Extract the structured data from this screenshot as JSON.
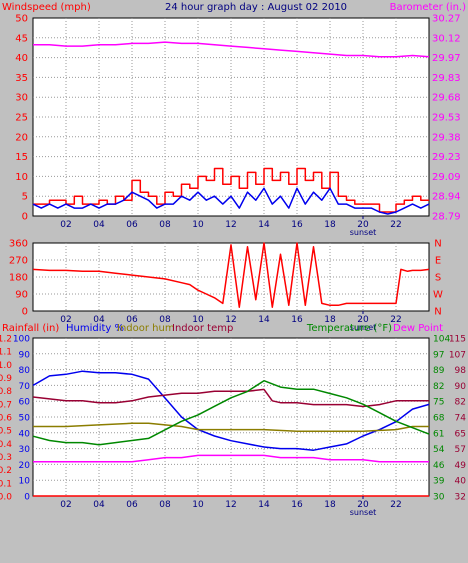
{
  "colors": {
    "background": "#c0c0c0",
    "plot_bg": "#ffffff",
    "grid": "#9a9a9a",
    "red": "#ff0000",
    "blue": "#0000ee",
    "magenta": "#ff00ff",
    "olive": "#8b7d00",
    "maroon": "#990033",
    "green": "#008800",
    "dark_red": "#cc0000",
    "navy": "#000080"
  },
  "chart_data": [
    {
      "type": "line",
      "title": "24 hour graph day : August 02 2010",
      "ylabel": "Windspeed (mph)",
      "y2label": "Barometer (in.)",
      "xlim": [
        0,
        24
      ],
      "ylim": [
        0,
        50
      ],
      "y_ticks": [
        "0",
        "5",
        "10",
        "15",
        "20",
        "25",
        "30",
        "35",
        "40",
        "45",
        "50"
      ],
      "y2lim": [
        28.79,
        30.27
      ],
      "y2_ticks": [
        "28.79",
        "28.94",
        "29.09",
        "29.23",
        "29.38",
        "29.53",
        "29.68",
        "29.83",
        "29.97",
        "30.12",
        "30.27"
      ],
      "x_ticks": [
        "02",
        "04",
        "06",
        "08",
        "10",
        "12",
        "14",
        "16",
        "18",
        "20",
        "22"
      ],
      "x_marker": "sunset",
      "grid": true,
      "series": [
        {
          "key": "gust",
          "color": "red",
          "axis": "left",
          "step": true,
          "x": [
            0,
            1,
            2,
            2.5,
            3,
            4,
            4.5,
            5,
            5.5,
            6,
            6.5,
            7,
            7.5,
            8,
            8.5,
            9,
            9.5,
            10,
            10.5,
            11,
            11.5,
            12,
            12.5,
            13,
            13.5,
            14,
            14.5,
            15,
            15.5,
            16,
            16.5,
            17,
            17.5,
            18,
            18.5,
            19,
            19.5,
            20,
            20.5,
            21,
            21.5,
            22,
            22.5,
            23,
            23.5,
            24
          ],
          "y": [
            3,
            4,
            3,
            5,
            3,
            4,
            3,
            5,
            4,
            9,
            6,
            5,
            3,
            6,
            5,
            8,
            7,
            10,
            9,
            12,
            8,
            10,
            7,
            11,
            8,
            12,
            9,
            11,
            8,
            12,
            9,
            11,
            7,
            11,
            5,
            4,
            3,
            3,
            3,
            1,
            1,
            3,
            4,
            5,
            4,
            4
          ]
        },
        {
          "key": "wind",
          "color": "blue",
          "axis": "left",
          "x": [
            0,
            0.5,
            1,
            1.5,
            2,
            2.5,
            3,
            3.5,
            4,
            4.5,
            5,
            5.5,
            6,
            6.5,
            7,
            7.5,
            8,
            8.5,
            9,
            9.5,
            10,
            10.5,
            11,
            11.5,
            12,
            12.5,
            13,
            13.5,
            14,
            14.5,
            15,
            15.5,
            16,
            16.5,
            17,
            17.5,
            18,
            18.5,
            19,
            19.5,
            20,
            20.5,
            21,
            21.5,
            22,
            22.5,
            23,
            23.5,
            24
          ],
          "y": [
            3,
            2,
            3,
            2,
            3,
            2,
            2,
            3,
            2,
            3,
            3,
            4,
            6,
            5,
            4,
            2,
            3,
            3,
            5,
            4,
            6,
            4,
            5,
            3,
            5,
            2,
            6,
            4,
            7,
            3,
            5,
            2,
            7,
            3,
            6,
            4,
            7,
            3,
            3,
            2,
            2,
            2,
            1,
            0.5,
            1,
            2,
            3,
            2,
            3
          ]
        },
        {
          "key": "barometer",
          "color": "magenta",
          "axis": "right",
          "x": [
            0,
            1,
            2,
            3,
            4,
            5,
            6,
            7,
            8,
            9,
            10,
            11,
            12,
            13,
            14,
            15,
            16,
            17,
            18,
            19,
            20,
            21,
            22,
            23,
            24
          ],
          "y": [
            30.07,
            30.07,
            30.06,
            30.06,
            30.07,
            30.07,
            30.08,
            30.08,
            30.09,
            30.08,
            30.08,
            30.07,
            30.06,
            30.05,
            30.04,
            30.03,
            30.02,
            30.01,
            30.0,
            29.99,
            29.99,
            29.98,
            29.98,
            29.99,
            29.98
          ]
        }
      ]
    },
    {
      "type": "line",
      "xlim": [
        0,
        24
      ],
      "ylim": [
        0,
        360
      ],
      "y_ticks": [
        "0",
        "90",
        "180",
        "270",
        "360"
      ],
      "compass": [
        "N",
        "W",
        "S",
        "E",
        "N"
      ],
      "x_ticks": [
        "02",
        "04",
        "06",
        "08",
        "10",
        "12",
        "14",
        "16",
        "18",
        "20",
        "22"
      ],
      "x_marker": "sunset",
      "grid": true,
      "series": [
        {
          "key": "direction",
          "color": "red",
          "axis": "left",
          "x": [
            0,
            1,
            2,
            3,
            4,
            5,
            6,
            7,
            8,
            9,
            9.5,
            10,
            10.5,
            11,
            11.5,
            12,
            12.5,
            13,
            13.5,
            14,
            14.5,
            15,
            15.5,
            16,
            16.5,
            17,
            17.5,
            18,
            18.5,
            19,
            20,
            21,
            22,
            22.3,
            22.7,
            23,
            23.5,
            24
          ],
          "y": [
            220,
            215,
            215,
            210,
            210,
            200,
            190,
            180,
            170,
            150,
            140,
            110,
            90,
            70,
            40,
            350,
            20,
            340,
            60,
            360,
            20,
            300,
            30,
            360,
            30,
            340,
            40,
            30,
            30,
            40,
            40,
            40,
            40,
            220,
            210,
            215,
            215,
            220
          ]
        }
      ]
    },
    {
      "type": "line",
      "labels_left": [
        "Rainfall (in)",
        "Humidity %",
        "Indoor hum",
        "Indoor temp"
      ],
      "labels_right": [
        "Temperature (°F)",
        "Dew Point"
      ],
      "xlim": [
        0,
        24
      ],
      "rain_ticks": [
        "0.0",
        "0.1",
        "0.2",
        "0.3",
        "0.4",
        "0.5",
        "0.6",
        "0.7",
        "0.8",
        "0.9",
        "1.0",
        "1.1",
        "1.2"
      ],
      "hum_ticks": [
        "0",
        "10",
        "20",
        "30",
        "40",
        "50",
        "60",
        "70",
        "80",
        "90",
        "100"
      ],
      "indoor_ticks": [
        "32",
        "40",
        "49",
        "57",
        "65",
        "74",
        "82",
        "90",
        "98",
        "107",
        "115"
      ],
      "temp_ticks": [
        "30",
        "39",
        "46",
        "54",
        "61",
        "68",
        "75",
        "82",
        "89",
        "97",
        "104"
      ],
      "x_ticks": [
        "02",
        "04",
        "06",
        "08",
        "10",
        "12",
        "14",
        "16",
        "18",
        "20",
        "22"
      ],
      "x_marker": "sunset",
      "grid": true,
      "series": [
        {
          "key": "rain",
          "color": "red",
          "axis": "rain",
          "x": [
            0,
            24
          ],
          "y": [
            0,
            0
          ]
        },
        {
          "key": "humidity",
          "color": "blue",
          "axis": "hum",
          "x": [
            0,
            1,
            2,
            3,
            4,
            5,
            6,
            7,
            8,
            9,
            10,
            11,
            12,
            13,
            14,
            15,
            16,
            17,
            18,
            19,
            20,
            21,
            22,
            23,
            24
          ],
          "y": [
            70,
            76,
            77,
            79,
            78,
            78,
            77,
            74,
            62,
            50,
            42,
            38,
            35,
            33,
            31,
            30,
            30,
            29,
            31,
            33,
            38,
            42,
            47,
            55,
            58
          ]
        },
        {
          "key": "indoor_hum",
          "color": "olive",
          "axis": "hum",
          "x": [
            0,
            2,
            4,
            6,
            7,
            8,
            9,
            10,
            12,
            14,
            16,
            18,
            20,
            22,
            23,
            24
          ],
          "y": [
            44,
            44,
            45,
            46,
            46,
            45,
            44,
            42,
            42,
            42,
            41,
            41,
            41,
            42,
            44,
            44
          ]
        },
        {
          "key": "indoor_temp",
          "color": "maroon",
          "axis": "indoor",
          "x": [
            0,
            1,
            2,
            3,
            4,
            5,
            6,
            7,
            8,
            9,
            10,
            11,
            12,
            13,
            14,
            14.5,
            15,
            16,
            17,
            18,
            19,
            20,
            21,
            22,
            23,
            24
          ],
          "y": [
            84,
            83,
            82,
            82,
            81,
            81,
            82,
            84,
            85,
            86,
            86,
            87,
            87,
            87,
            88,
            82,
            81,
            81,
            80,
            80,
            80,
            79,
            80,
            82,
            82,
            82
          ]
        },
        {
          "key": "temperature",
          "color": "green",
          "axis": "temp",
          "x": [
            0,
            1,
            2,
            3,
            4,
            5,
            6,
            7,
            8,
            9,
            10,
            11,
            12,
            13,
            14,
            15,
            16,
            17,
            18,
            19,
            20,
            21,
            22,
            23,
            24
          ],
          "y": [
            58,
            56,
            55,
            55,
            54,
            55,
            56,
            57,
            61,
            65,
            68,
            72,
            76,
            79,
            84,
            81,
            80,
            80,
            78,
            76,
            73,
            69,
            65,
            62,
            59
          ]
        },
        {
          "key": "dew_point",
          "color": "magenta",
          "axis": "temp",
          "x": [
            0,
            1,
            2,
            3,
            4,
            5,
            6,
            7,
            8,
            9,
            10,
            11,
            12,
            13,
            14,
            15,
            16,
            17,
            18,
            19,
            20,
            21,
            22,
            23,
            24
          ],
          "y": [
            46,
            46,
            46,
            46,
            46,
            46,
            46,
            47,
            48,
            48,
            49,
            49,
            49,
            49,
            49,
            48,
            48,
            48,
            47,
            47,
            47,
            46,
            46,
            46,
            46
          ]
        }
      ]
    }
  ]
}
